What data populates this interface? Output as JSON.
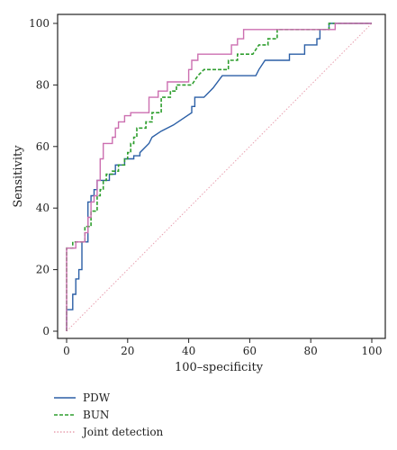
{
  "chart_data": {
    "type": "line",
    "xlabel": "100–specificity",
    "ylabel": "Sensitivity",
    "xlim": [
      0,
      100
    ],
    "ylim": [
      0,
      100
    ],
    "x_ticks": [
      "0",
      "20",
      "40",
      "60",
      "80",
      "100"
    ],
    "y_ticks": [
      "0",
      "20",
      "40",
      "60",
      "80",
      "100"
    ],
    "grid": false,
    "legend_position": "bottom-left",
    "reference_line": {
      "from": [
        0,
        0
      ],
      "to": [
        100,
        100
      ],
      "color": "#e8a0b0"
    },
    "series": [
      {
        "name": "PDW",
        "color": "#2b5fa6",
        "dash": "solid",
        "points": [
          [
            0,
            0
          ],
          [
            0,
            7
          ],
          [
            2,
            7
          ],
          [
            2,
            12
          ],
          [
            3,
            12
          ],
          [
            3,
            17
          ],
          [
            4,
            17
          ],
          [
            4,
            20
          ],
          [
            5,
            20
          ],
          [
            5,
            29
          ],
          [
            7,
            29
          ],
          [
            7,
            42
          ],
          [
            8,
            42
          ],
          [
            8,
            44
          ],
          [
            9,
            44
          ],
          [
            9,
            46
          ],
          [
            10,
            46
          ],
          [
            10,
            49
          ],
          [
            14,
            49
          ],
          [
            14,
            51
          ],
          [
            16,
            51
          ],
          [
            16,
            54
          ],
          [
            19,
            54
          ],
          [
            19,
            56
          ],
          [
            22,
            56
          ],
          [
            22,
            57
          ],
          [
            24,
            57
          ],
          [
            24,
            58
          ],
          [
            27,
            61
          ],
          [
            28,
            63
          ],
          [
            31,
            65
          ],
          [
            35,
            67
          ],
          [
            41,
            71
          ],
          [
            41,
            73
          ],
          [
            42,
            73
          ],
          [
            42,
            76
          ],
          [
            45,
            76
          ],
          [
            48,
            79
          ],
          [
            51,
            83
          ],
          [
            62,
            83
          ],
          [
            63,
            85
          ],
          [
            65,
            88
          ],
          [
            73,
            88
          ],
          [
            73,
            90
          ],
          [
            78,
            90
          ],
          [
            78,
            93
          ],
          [
            82,
            93
          ],
          [
            82,
            95
          ],
          [
            83,
            95
          ],
          [
            83,
            98
          ],
          [
            86,
            98
          ],
          [
            86,
            100
          ],
          [
            100,
            100
          ]
        ]
      },
      {
        "name": "BUN",
        "color": "#2e9e2e",
        "dash": "dashed",
        "points": [
          [
            0,
            0
          ],
          [
            0,
            27
          ],
          [
            2,
            27
          ],
          [
            2,
            29
          ],
          [
            6,
            29
          ],
          [
            6,
            34
          ],
          [
            8,
            34
          ],
          [
            8,
            39
          ],
          [
            10,
            39
          ],
          [
            10,
            44
          ],
          [
            11,
            44
          ],
          [
            11,
            46
          ],
          [
            12,
            46
          ],
          [
            12,
            49
          ],
          [
            13,
            49
          ],
          [
            13,
            51
          ],
          [
            15,
            51
          ],
          [
            15,
            52
          ],
          [
            17,
            52
          ],
          [
            17,
            54
          ],
          [
            19,
            54
          ],
          [
            19,
            56
          ],
          [
            20,
            56
          ],
          [
            20,
            58
          ],
          [
            21,
            58
          ],
          [
            21,
            61
          ],
          [
            22,
            61
          ],
          [
            22,
            63
          ],
          [
            23,
            63
          ],
          [
            23,
            66
          ],
          [
            26,
            66
          ],
          [
            26,
            68
          ],
          [
            28,
            68
          ],
          [
            28,
            71
          ],
          [
            31,
            71
          ],
          [
            31,
            76
          ],
          [
            34,
            76
          ],
          [
            34,
            78
          ],
          [
            36,
            78
          ],
          [
            36,
            80
          ],
          [
            41,
            80
          ],
          [
            43,
            83
          ],
          [
            45,
            85
          ],
          [
            53,
            85
          ],
          [
            53,
            88
          ],
          [
            56,
            88
          ],
          [
            56,
            90
          ],
          [
            61,
            90
          ],
          [
            63,
            93
          ],
          [
            66,
            93
          ],
          [
            66,
            95
          ],
          [
            69,
            95
          ],
          [
            69,
            98
          ],
          [
            72,
            98
          ],
          [
            86,
            98
          ],
          [
            86,
            100
          ],
          [
            100,
            100
          ]
        ]
      },
      {
        "name": "Joint detection",
        "color": "#cc6fb0",
        "dash": "solid",
        "points": [
          [
            0,
            0
          ],
          [
            0,
            27
          ],
          [
            3,
            27
          ],
          [
            3,
            29
          ],
          [
            6,
            29
          ],
          [
            6,
            32
          ],
          [
            7,
            32
          ],
          [
            7,
            37
          ],
          [
            8,
            37
          ],
          [
            8,
            42
          ],
          [
            9,
            42
          ],
          [
            9,
            44
          ],
          [
            10,
            44
          ],
          [
            10,
            49
          ],
          [
            11,
            49
          ],
          [
            11,
            56
          ],
          [
            12,
            56
          ],
          [
            12,
            61
          ],
          [
            15,
            61
          ],
          [
            15,
            63
          ],
          [
            16,
            63
          ],
          [
            16,
            66
          ],
          [
            17,
            66
          ],
          [
            17,
            68
          ],
          [
            19,
            68
          ],
          [
            19,
            70
          ],
          [
            21,
            70
          ],
          [
            21,
            71
          ],
          [
            27,
            71
          ],
          [
            27,
            76
          ],
          [
            30,
            76
          ],
          [
            30,
            78
          ],
          [
            33,
            78
          ],
          [
            33,
            81
          ],
          [
            40,
            81
          ],
          [
            40,
            85
          ],
          [
            41,
            85
          ],
          [
            41,
            88
          ],
          [
            43,
            88
          ],
          [
            43,
            90
          ],
          [
            54,
            90
          ],
          [
            54,
            93
          ],
          [
            56,
            93
          ],
          [
            56,
            95
          ],
          [
            58,
            95
          ],
          [
            58,
            98
          ],
          [
            88,
            98
          ],
          [
            88,
            100
          ],
          [
            100,
            100
          ]
        ]
      }
    ]
  }
}
